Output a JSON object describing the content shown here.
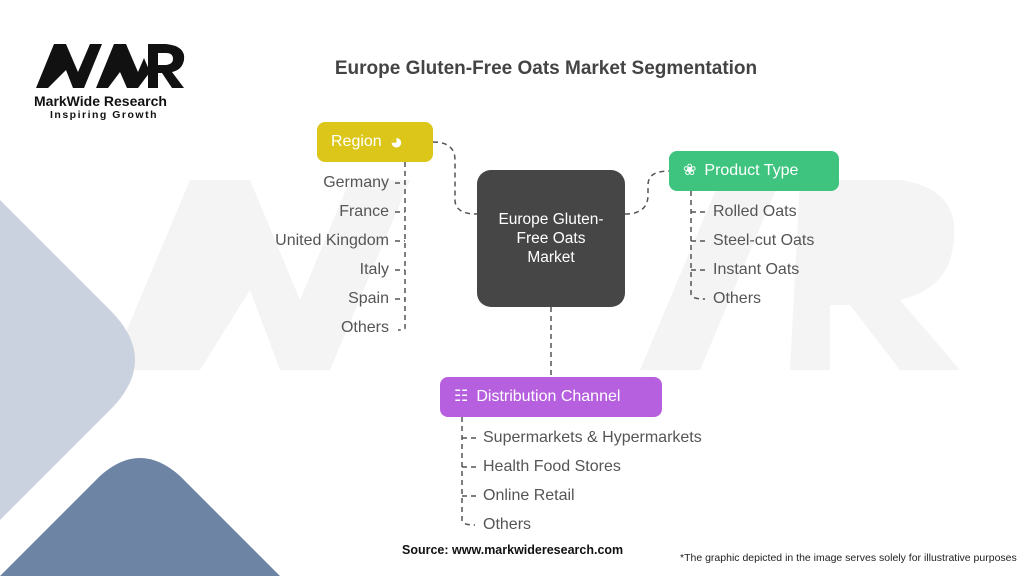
{
  "logo": {
    "text": "MWR",
    "name": "MarkWide Research",
    "tagline": "Inspiring Growth"
  },
  "title": "Europe Gluten-Free Oats Market Segmentation",
  "center": {
    "label": "Europe Gluten-Free Oats Market"
  },
  "region": {
    "label": "Region",
    "icon": "globe-icon",
    "color": "#dcc61a",
    "items": [
      "Germany",
      "France",
      "United Kingdom",
      "Italy",
      "Spain",
      "Others"
    ]
  },
  "product_type": {
    "label": "Product Type",
    "icon": "plant-icon",
    "color": "#3ec47e",
    "items": [
      "Rolled Oats",
      "Steel-cut Oats",
      "Instant Oats",
      "Others"
    ]
  },
  "distribution": {
    "label": "Distribution Channel",
    "icon": "hierarchy-icon",
    "color": "#b65fdf",
    "items": [
      "Supermarkets & Hypermarkets",
      "Health Food Stores",
      "Online Retail",
      "Others"
    ]
  },
  "source": "Source: www.markwideresearch.com",
  "note": "*The graphic depicted in the image serves solely for illustrative purposes"
}
